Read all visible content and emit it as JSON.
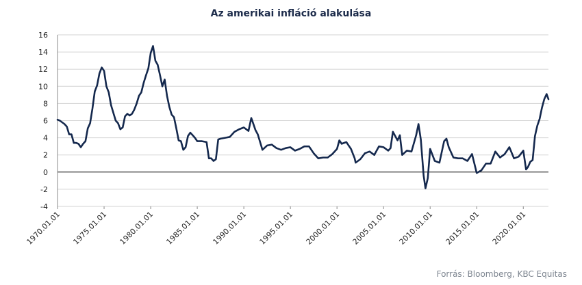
{
  "chart_data": {
    "type": "line",
    "title": "Az amerikai infláció alakulása",
    "xlabel": "",
    "ylabel": "",
    "ylim": [
      -4,
      16
    ],
    "yticks": [
      -4,
      -2,
      0,
      2,
      4,
      6,
      8,
      10,
      12,
      14,
      16
    ],
    "xlim": [
      1970.0,
      2022.7
    ],
    "xticks": [
      {
        "x": 1970,
        "label": "1970.01.01"
      },
      {
        "x": 1975,
        "label": "1975.01.01"
      },
      {
        "x": 1980,
        "label": "1980.01.01"
      },
      {
        "x": 1985,
        "label": "1985.01.01"
      },
      {
        "x": 1990,
        "label": "1990.01.01"
      },
      {
        "x": 1995,
        "label": "1995.01.01"
      },
      {
        "x": 2000,
        "label": "2000.01.01"
      },
      {
        "x": 2005,
        "label": "2005.01.01"
      },
      {
        "x": 2010,
        "label": "2010.01.01"
      },
      {
        "x": 2015,
        "label": "2015.01.01"
      },
      {
        "x": 2020,
        "label": "2020.01.01"
      }
    ],
    "grid": "horizontal",
    "line_color": "#14284d",
    "zero_line": true,
    "series": [
      {
        "x": [
          1970.0,
          1970.25,
          1970.5,
          1970.75,
          1971.0,
          1971.25,
          1971.5,
          1971.75,
          1972.0,
          1972.25,
          1972.5,
          1972.75,
          1973.0,
          1973.25,
          1973.5,
          1973.75,
          1974.0,
          1974.25,
          1974.5,
          1974.75,
          1975.0,
          1975.25,
          1975.5,
          1975.75,
          1976.0,
          1976.25,
          1976.5,
          1976.75,
          1977.0,
          1977.25,
          1977.5,
          1977.75,
          1978.0,
          1978.25,
          1978.5,
          1978.75,
          1979.0,
          1979.25,
          1979.5,
          1979.75,
          1980.0,
          1980.25,
          1980.5,
          1980.75,
          1981.0,
          1981.25,
          1981.5,
          1981.75,
          1982.0,
          1982.25,
          1982.5,
          1982.75,
          1983.0,
          1983.25,
          1983.5,
          1983.75,
          1984.0,
          1984.25,
          1984.5,
          1984.75,
          1985.0,
          1985.5,
          1986.0,
          1986.25,
          1986.5,
          1986.75,
          1987.0,
          1987.25,
          1987.5,
          1988.0,
          1988.5,
          1989.0,
          1989.5,
          1990.0,
          1990.5,
          1990.8,
          1991.0,
          1991.25,
          1991.5,
          1992.0,
          1992.5,
          1993.0,
          1993.5,
          1994.0,
          1994.5,
          1995.0,
          1995.5,
          1996.0,
          1996.5,
          1997.0,
          1997.5,
          1998.0,
          1998.5,
          1999.0,
          1999.5,
          2000.0,
          2000.25,
          2000.5,
          2001.0,
          2001.5,
          2001.9,
          2002.0,
          2002.5,
          2003.0,
          2003.5,
          2004.0,
          2004.5,
          2005.0,
          2005.5,
          2005.75,
          2006.0,
          2006.5,
          2006.75,
          2007.0,
          2007.5,
          2008.0,
          2008.5,
          2008.75,
          2009.0,
          2009.3,
          2009.5,
          2009.75,
          2010.0,
          2010.5,
          2011.0,
          2011.5,
          2011.75,
          2012.0,
          2012.5,
          2013.0,
          2013.5,
          2014.0,
          2014.5,
          2015.0,
          2015.5,
          2016.0,
          2016.5,
          2017.0,
          2017.5,
          2018.0,
          2018.5,
          2019.0,
          2019.5,
          2020.0,
          2020.3,
          2020.5,
          2020.75,
          2021.0,
          2021.25,
          2021.5,
          2021.75,
          2022.0,
          2022.25,
          2022.5,
          2022.7
        ],
        "y": [
          6.1,
          6.0,
          5.8,
          5.6,
          5.3,
          4.4,
          4.4,
          3.4,
          3.4,
          3.3,
          2.9,
          3.3,
          3.6,
          5.1,
          5.7,
          7.4,
          9.4,
          10.1,
          11.5,
          12.2,
          11.8,
          10.0,
          9.3,
          7.8,
          6.9,
          6.0,
          5.7,
          5.0,
          5.2,
          6.5,
          6.8,
          6.6,
          6.8,
          7.3,
          8.0,
          8.9,
          9.3,
          10.4,
          11.3,
          12.1,
          13.9,
          14.7,
          13.0,
          12.5,
          11.3,
          10.0,
          10.8,
          8.9,
          7.6,
          6.7,
          6.4,
          5.1,
          3.7,
          3.6,
          2.6,
          2.9,
          4.2,
          4.6,
          4.3,
          4.0,
          3.6,
          3.6,
          3.5,
          1.6,
          1.6,
          1.3,
          1.5,
          3.8,
          3.9,
          4.0,
          4.1,
          4.7,
          5.0,
          5.2,
          4.8,
          6.3,
          5.7,
          4.9,
          4.4,
          2.6,
          3.1,
          3.2,
          2.8,
          2.6,
          2.8,
          2.9,
          2.5,
          2.7,
          3.0,
          3.0,
          2.2,
          1.6,
          1.7,
          1.7,
          2.1,
          2.7,
          3.7,
          3.3,
          3.5,
          2.7,
          1.6,
          1.1,
          1.5,
          2.2,
          2.4,
          2.0,
          3.0,
          2.9,
          2.5,
          2.8,
          4.7,
          3.7,
          4.3,
          2.0,
          2.5,
          2.4,
          4.3,
          5.6,
          3.8,
          -0.4,
          -1.9,
          -0.7,
          2.7,
          1.3,
          1.1,
          3.6,
          3.9,
          2.9,
          1.7,
          1.6,
          1.6,
          1.3,
          2.1,
          -0.1,
          0.2,
          1.0,
          1.0,
          2.4,
          1.7,
          2.1,
          2.9,
          1.6,
          1.8,
          2.5,
          0.3,
          0.6,
          1.2,
          1.4,
          4.2,
          5.4,
          6.2,
          7.5,
          8.5,
          9.1,
          8.5
        ]
      }
    ]
  },
  "source": "Forrás: Bloomberg,  KBC Equitas"
}
